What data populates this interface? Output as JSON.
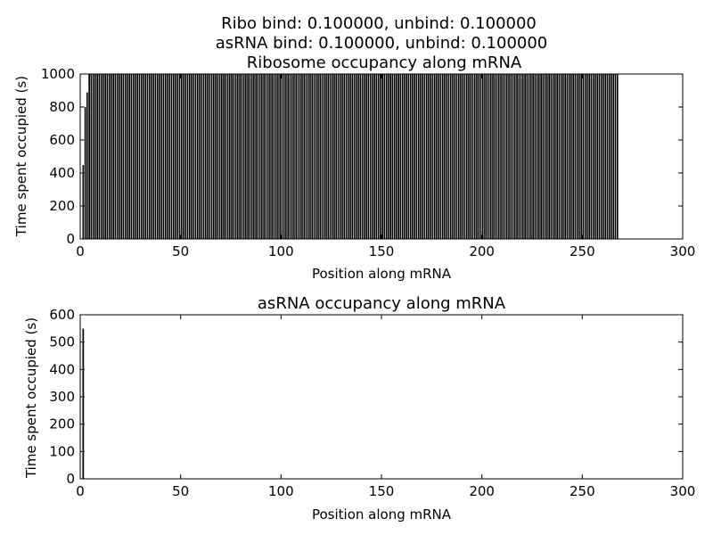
{
  "suptitle_lines": [
    "Ribo bind: 0.100000, unbind: 0.100000",
    "asRNA bind: 0.100000, unbind: 0.100000"
  ],
  "colors": {
    "bar_fill": "#000000",
    "bar_edge": "#ffffff",
    "axes": "#000000",
    "background": "#ffffff"
  },
  "chart_data": [
    {
      "type": "bar",
      "title": "Ribosome occupancy along mRNA",
      "xlabel": "Position along mRNA",
      "ylabel": "Time spent occupied (s)",
      "xlim": [
        0,
        300
      ],
      "ylim": [
        0,
        1000
      ],
      "xticks": [
        0,
        50,
        100,
        150,
        200,
        250,
        300
      ],
      "yticks": [
        0,
        200,
        400,
        600,
        800,
        1000
      ],
      "grid": false,
      "bar_width": 1,
      "bars": [
        {
          "x_start": 0,
          "x_end": 1,
          "value": 0
        },
        {
          "x_start": 1,
          "x_end": 2,
          "value": 450
        },
        {
          "x_start": 2,
          "x_end": 3,
          "value": 800
        },
        {
          "x_start": 3,
          "x_end": 4,
          "value": 890
        },
        {
          "x_start": 4,
          "x_end": 5,
          "value": 1000
        },
        {
          "x_start": 5,
          "x_end": 268,
          "value": 1000,
          "repeated_unit_bars": true
        }
      ]
    },
    {
      "type": "bar",
      "title": "asRNA occupancy along mRNA",
      "xlabel": "Position along mRNA",
      "ylabel": "Time spent occupied (s)",
      "xlim": [
        0,
        300
      ],
      "ylim": [
        0,
        600
      ],
      "xticks": [
        0,
        50,
        100,
        150,
        200,
        250,
        300
      ],
      "yticks": [
        0,
        100,
        200,
        300,
        400,
        500,
        600
      ],
      "grid": false,
      "bar_width": 1,
      "bars": [
        {
          "x_start": 1,
          "x_end": 2,
          "value": 550
        }
      ]
    }
  ]
}
